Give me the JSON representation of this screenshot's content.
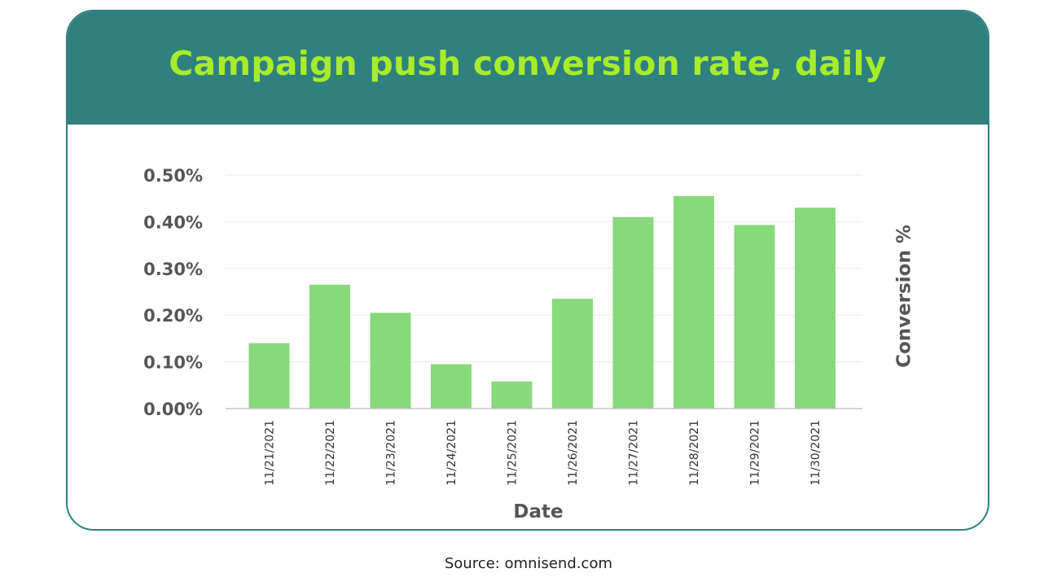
{
  "source": "Source: omnisend.com",
  "colors": {
    "header": "#2f807e",
    "title": "#a6ec2a",
    "bar": "#88d87c",
    "axis_text": "#555555"
  },
  "chart_data": {
    "type": "bar",
    "title": "Campaign push conversion rate, daily",
    "xlabel": "Date",
    "ylabel": "Conversion %",
    "categories": [
      "11/21/2021",
      "11/22/2021",
      "11/23/2021",
      "11/24/2021",
      "11/25/2021",
      "11/26/2021",
      "11/27/2021",
      "11/28/2021",
      "11/29/2021",
      "11/30/2021"
    ],
    "values": [
      0.14,
      0.265,
      0.205,
      0.095,
      0.058,
      0.235,
      0.41,
      0.455,
      0.393,
      0.43
    ],
    "ylim": [
      0,
      0.5
    ],
    "yticks": [
      "0.00%",
      "0.10%",
      "0.20%",
      "0.30%",
      "0.40%",
      "0.50%"
    ],
    "grid": true,
    "legend": "none"
  }
}
